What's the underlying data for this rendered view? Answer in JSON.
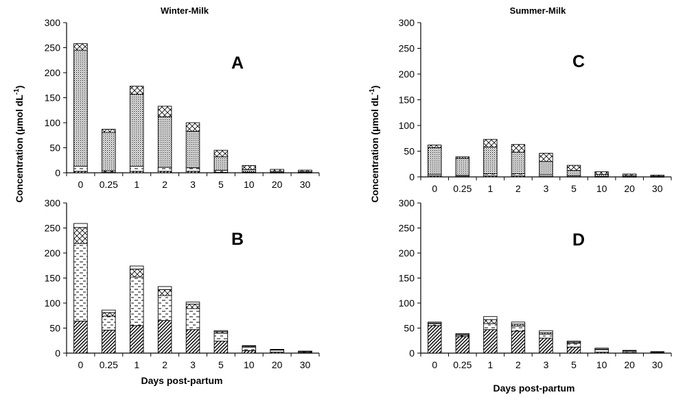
{
  "chart_data": [
    {
      "id": "A",
      "type": "bar",
      "stacked": true,
      "title": "Winter-Milk",
      "panel_label": "A",
      "categories": [
        "0",
        "0.25",
        "1",
        "2",
        "3",
        "5",
        "10",
        "20",
        "30"
      ],
      "ylabel": "Concentration (µmol dL⁻¹)",
      "xlabel": "",
      "ylim": [
        0,
        300
      ],
      "yticks": [
        0,
        50,
        100,
        150,
        200,
        250,
        300
      ],
      "series": [
        {
          "pattern": "hatch",
          "values": [
            3,
            1,
            3,
            3,
            3,
            1,
            0.5,
            0.3,
            0.3
          ]
        },
        {
          "pattern": "dashes",
          "values": [
            10,
            3,
            10,
            8,
            7,
            4,
            1,
            0.5,
            0.5
          ]
        },
        {
          "pattern": "dots",
          "values": [
            232,
            77,
            144,
            101,
            73,
            27,
            5,
            2,
            1.5
          ]
        },
        {
          "pattern": "crosshatch",
          "values": [
            13,
            6,
            16,
            21,
            17,
            13,
            8,
            4,
            3
          ]
        }
      ]
    },
    {
      "id": "B",
      "type": "bar",
      "stacked": true,
      "title": "",
      "panel_label": "B",
      "categories": [
        "0",
        "0.25",
        "1",
        "2",
        "3",
        "5",
        "10",
        "20",
        "30"
      ],
      "ylabel": "Concentration (µmol dL⁻¹)",
      "xlabel": "Days post-partum",
      "ylim": [
        0,
        300
      ],
      "yticks": [
        0,
        50,
        100,
        150,
        200,
        250,
        300
      ],
      "series": [
        {
          "pattern": "hatch",
          "values": [
            64,
            46,
            55,
            65,
            47,
            24,
            5,
            2,
            1
          ]
        },
        {
          "pattern": "dashes",
          "values": [
            155,
            28,
            97,
            50,
            42,
            16,
            7,
            4,
            2
          ]
        },
        {
          "pattern": "crosshatch",
          "values": [
            32,
            7,
            16,
            12,
            9,
            3,
            2,
            1,
            0.5
          ]
        },
        {
          "pattern": "blank",
          "values": [
            8,
            5,
            6,
            6,
            4,
            2,
            1,
            0.5,
            0.5
          ]
        }
      ]
    },
    {
      "id": "C",
      "type": "bar",
      "stacked": true,
      "title": "Summer-Milk",
      "panel_label": "C",
      "categories": [
        "0",
        "0.25",
        "1",
        "2",
        "3",
        "5",
        "10",
        "20",
        "30"
      ],
      "ylabel": "Concentration (µmol dL⁻¹)",
      "xlabel": "",
      "ylim": [
        0,
        300
      ],
      "yticks": [
        0,
        50,
        100,
        150,
        200,
        250,
        300
      ],
      "series": [
        {
          "pattern": "hatch",
          "values": [
            2,
            1,
            2,
            2,
            1,
            0.5,
            0.3,
            0.2,
            0.2
          ]
        },
        {
          "pattern": "dashes",
          "values": [
            3,
            2,
            4,
            4,
            3,
            2,
            0.7,
            0.3,
            0.3
          ]
        },
        {
          "pattern": "dots",
          "values": [
            52,
            33,
            52,
            42,
            26,
            10,
            4,
            2,
            1
          ]
        },
        {
          "pattern": "crosshatch",
          "values": [
            5,
            3,
            15,
            15,
            16,
            10,
            5,
            3,
            2
          ]
        }
      ]
    },
    {
      "id": "D",
      "type": "bar",
      "stacked": true,
      "title": "",
      "panel_label": "D",
      "categories": [
        "0",
        "0.25",
        "1",
        "2",
        "3",
        "5",
        "10",
        "20",
        "30"
      ],
      "ylabel": "Concentration (µmol dL⁻¹)",
      "xlabel": "Days post-partum",
      "ylim": [
        0,
        300
      ],
      "yticks": [
        0,
        50,
        100,
        150,
        200,
        250,
        300
      ],
      "series": [
        {
          "pattern": "hatch",
          "values": [
            55,
            33,
            47,
            44,
            30,
            12,
            2,
            1,
            0.5
          ]
        },
        {
          "pattern": "dashes",
          "values": [
            4,
            3,
            12,
            10,
            8,
            8,
            5,
            3,
            1.5
          ]
        },
        {
          "pattern": "crosshatch",
          "values": [
            1,
            1,
            8,
            4,
            3,
            2,
            1,
            0.5,
            0.5
          ]
        },
        {
          "pattern": "blank",
          "values": [
            2,
            2,
            6,
            4,
            4,
            2,
            2,
            1,
            0.5
          ]
        }
      ]
    }
  ]
}
